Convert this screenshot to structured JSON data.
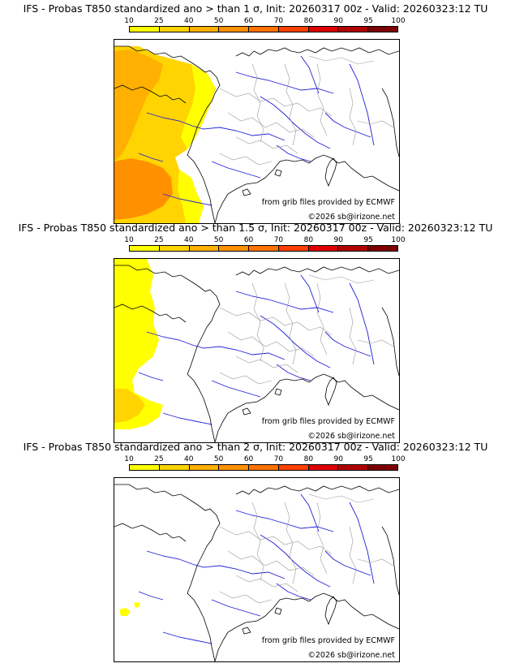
{
  "colorbar": {
    "labels": [
      "10",
      "25",
      "40",
      "50",
      "60",
      "70",
      "80",
      "90",
      "95",
      "100"
    ],
    "colors": [
      "#ffff00",
      "#ffd400",
      "#ffb000",
      "#ff9100",
      "#ff7300",
      "#ff4000",
      "#e00000",
      "#b00000",
      "#7f0000"
    ]
  },
  "panels": [
    {
      "title": "IFS - Probas T850  standardized ano > than 1 σ, Init: 20260317 00z - Valid: 20260323:12 TU",
      "source_credit": "from grib files provided by ECMWF",
      "copyright": "©2026 sb@irizone.net"
    },
    {
      "title": "IFS - Probas T850  standardized ano > than 1.5 σ, Init: 20260317 00z - Valid: 20260323:12 TU",
      "source_credit": "from grib files provided by ECMWF",
      "copyright": "©2026 sb@irizone.net"
    },
    {
      "title": "IFS - Probas T850  standardized ano > than 2 σ, Init: 20260317 00z - Valid: 20260323:12 TU",
      "source_credit": "from grib files provided by ECMWF",
      "copyright": "©2026 sb@irizone.net"
    }
  ],
  "map_colors": {
    "coast": "#000000",
    "rivers": "#1f1fd8",
    "borders": "#9a9a9a"
  }
}
